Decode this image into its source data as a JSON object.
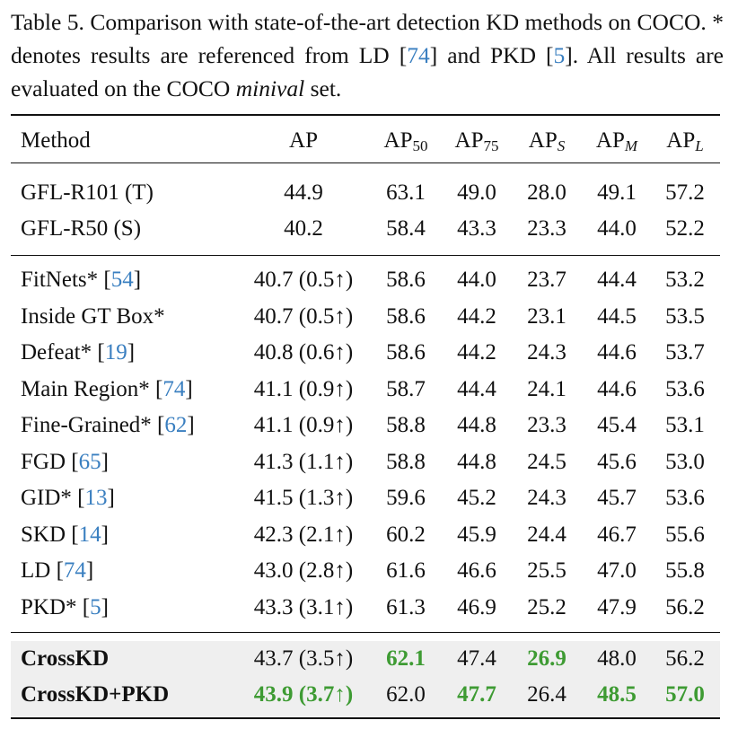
{
  "caption": {
    "prefix": "Table 5.  Comparison with state-of-the-art detection KD methods on COCO. * denotes results are referenced from LD [",
    "ref1": "74",
    "mid": "] and PKD [",
    "ref2": "5",
    "after": "]. All results are evaluated on the COCO ",
    "emph": "minival",
    "suffix": " set."
  },
  "headers": {
    "method": "Method",
    "ap": "AP",
    "ap50": {
      "base": "AP",
      "sub": "50"
    },
    "ap75": {
      "base": "AP",
      "sub": "75"
    },
    "aps": {
      "base": "AP",
      "sub": "S"
    },
    "apm": {
      "base": "AP",
      "sub": "M"
    },
    "apl": {
      "base": "AP",
      "sub": "L"
    }
  },
  "baselines": [
    {
      "method": "GFL-R101 (T)",
      "ap": "44.9",
      "ap50": "63.1",
      "ap75": "49.0",
      "aps": "28.0",
      "apm": "49.1",
      "apl": "57.2"
    },
    {
      "method": "GFL-R50 (S)",
      "ap": "40.2",
      "ap50": "58.4",
      "ap75": "43.3",
      "aps": "23.3",
      "apm": "44.0",
      "apl": "52.2"
    }
  ],
  "methods": [
    {
      "method": "FitNets* [",
      "ref": "54",
      "close": "]",
      "ap": "40.7 (0.5↑)",
      "ap50": "58.6",
      "ap75": "44.0",
      "aps": "23.7",
      "apm": "44.4",
      "apl": "53.2"
    },
    {
      "method": "Inside GT Box*",
      "ap": "40.7 (0.5↑)",
      "ap50": "58.6",
      "ap75": "44.2",
      "aps": "23.1",
      "apm": "44.5",
      "apl": "53.5"
    },
    {
      "method": "Defeat* [",
      "ref": "19",
      "close": "]",
      "ap": "40.8 (0.6↑)",
      "ap50": "58.6",
      "ap75": "44.2",
      "aps": "24.3",
      "apm": "44.6",
      "apl": "53.7"
    },
    {
      "method": "Main Region* [",
      "ref": "74",
      "close": "]",
      "ap": "41.1 (0.9↑)",
      "ap50": "58.7",
      "ap75": "44.4",
      "aps": "24.1",
      "apm": "44.6",
      "apl": "53.6"
    },
    {
      "method": "Fine-Grained* [",
      "ref": "62",
      "close": "]",
      "ap": "41.1 (0.9↑)",
      "ap50": "58.8",
      "ap75": "44.8",
      "aps": "23.3",
      "apm": "45.4",
      "apl": "53.1"
    },
    {
      "method": "FGD [",
      "ref": "65",
      "close": "]",
      "ap": "41.3 (1.1↑)",
      "ap50": "58.8",
      "ap75": "44.8",
      "aps": "24.5",
      "apm": "45.6",
      "apl": "53.0"
    },
    {
      "method": "GID* [",
      "ref": "13",
      "close": "]",
      "ap": "41.5 (1.3↑)",
      "ap50": "59.6",
      "ap75": "45.2",
      "aps": "24.3",
      "apm": "45.7",
      "apl": "53.6"
    },
    {
      "method": "SKD [",
      "ref": "14",
      "close": "]",
      "ap": "42.3 (2.1↑)",
      "ap50": "60.2",
      "ap75": "45.9",
      "aps": "24.4",
      "apm": "46.7",
      "apl": "55.6"
    },
    {
      "method": "LD [",
      "ref": "74",
      "close": "]",
      "ap": "43.0 (2.8↑)",
      "ap50": "61.6",
      "ap75": "46.6",
      "aps": "25.5",
      "apm": "47.0",
      "apl": "55.8"
    },
    {
      "method": "PKD* [",
      "ref": "5",
      "close": "]",
      "ap": "43.3 (3.1↑)",
      "ap50": "61.3",
      "ap75": "46.9",
      "aps": "25.2",
      "apm": "47.9",
      "apl": "56.2"
    }
  ],
  "ours": [
    {
      "method": "CrossKD",
      "ap": "43.7 (3.5↑)",
      "ap50": "62.1",
      "ap75": "47.4",
      "aps": "26.9",
      "apm": "48.0",
      "apl": "56.2"
    },
    {
      "method": "CrossKD+PKD",
      "ap": "43.9 (3.7↑)",
      "ap50": "62.0",
      "ap75": "47.7",
      "aps": "26.4",
      "apm": "48.5",
      "apl": "57.0"
    }
  ],
  "colors": {
    "link": "#3a7fc0",
    "best": "#3e9b33",
    "highlight": "#efefef"
  }
}
